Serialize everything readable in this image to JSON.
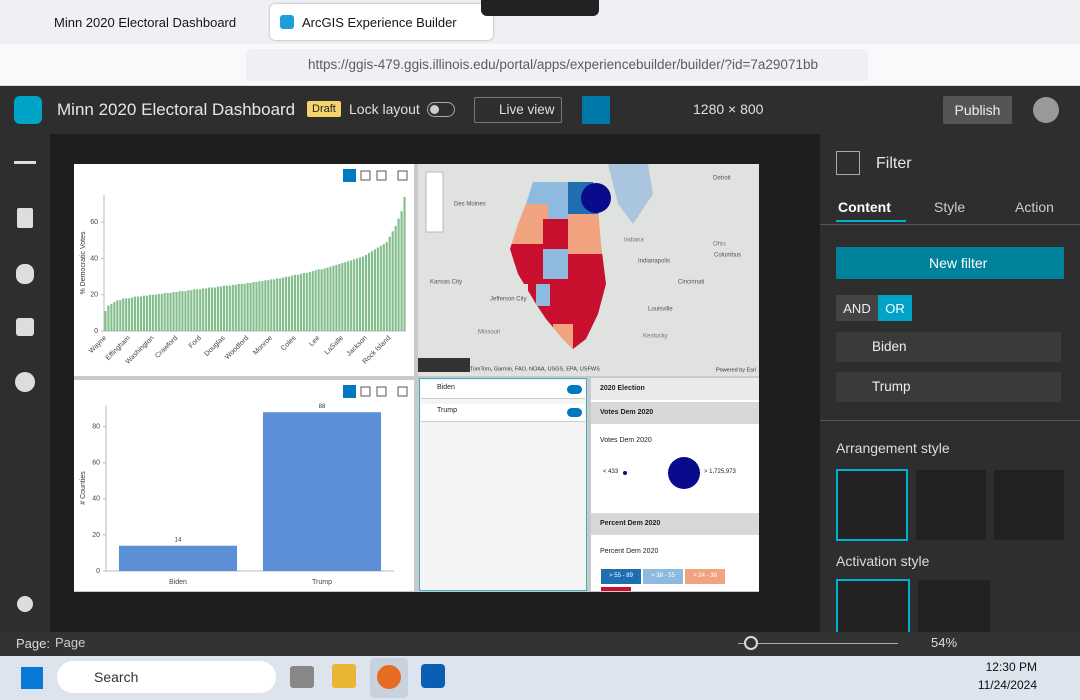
{
  "browser": {
    "tabs": [
      "Minn 2020 Electoral Dashboard",
      "ArcGIS Experience Builder"
    ],
    "url": "https://ggis-479.ggis.illinois.edu/portal/apps/experiencebuilder/builder/?id=7a29071bb"
  },
  "header": {
    "title": "Minn 2020 Electoral Dashboard",
    "status": "Draft",
    "lock_layout": "Lock layout",
    "live_view": "Live view",
    "resolution": "1280 × 800",
    "publish": "Publish"
  },
  "chart_data": [
    {
      "type": "bar",
      "ylabel": "% Democratic Votes",
      "color": "#82bd8c",
      "ylim": [
        0,
        75
      ],
      "yticks": [
        0,
        20,
        40,
        60
      ],
      "grid": false,
      "categories": [
        "Wayne",
        null,
        null,
        null,
        null,
        null,
        null,
        null,
        "Effingham",
        null,
        null,
        null,
        null,
        null,
        null,
        null,
        "Washington",
        null,
        null,
        null,
        null,
        null,
        null,
        null,
        "Crawford",
        null,
        null,
        null,
        null,
        null,
        null,
        null,
        "Ford",
        null,
        null,
        null,
        null,
        null,
        null,
        null,
        "Douglas",
        null,
        null,
        null,
        null,
        null,
        null,
        null,
        "Woodford",
        null,
        null,
        null,
        null,
        null,
        null,
        null,
        "Monroe",
        null,
        null,
        null,
        null,
        null,
        null,
        null,
        "Coles",
        null,
        null,
        null,
        null,
        null,
        null,
        null,
        "Lee",
        null,
        null,
        null,
        null,
        null,
        null,
        null,
        "LaSalle",
        null,
        null,
        null,
        null,
        null,
        null,
        null,
        "Jackson",
        null,
        null,
        null,
        null,
        null,
        null,
        null,
        "Rock Island",
        null,
        null,
        null,
        null,
        null
      ],
      "values": [
        11,
        14,
        15,
        16,
        17,
        17,
        18,
        18,
        18,
        18.5,
        19,
        19,
        19,
        19.5,
        19.5,
        20,
        20,
        20,
        20.5,
        20.5,
        21,
        21,
        21,
        21.5,
        21.5,
        22,
        22,
        22,
        22.5,
        22.5,
        23,
        23,
        23,
        23.5,
        23.5,
        24,
        24,
        24,
        24.5,
        24.5,
        25,
        25,
        25,
        25.5,
        25.5,
        26,
        26,
        26,
        26.5,
        26.5,
        27,
        27,
        27.5,
        27.5,
        28,
        28,
        28.5,
        28.5,
        29,
        29,
        29.5,
        30,
        30,
        30.5,
        31,
        31,
        31.5,
        32,
        32,
        32.5,
        33,
        33.5,
        34,
        34,
        34.5,
        35,
        35.5,
        36,
        36.5,
        37,
        37.5,
        38,
        38.5,
        39,
        39.5,
        40,
        40.5,
        41,
        42,
        43,
        44,
        45,
        46,
        47,
        48,
        49,
        52,
        55,
        58,
        62,
        66,
        74
      ]
    },
    {
      "type": "bar",
      "ylabel": "# Counties",
      "color": "#5b8fd6",
      "ylim": [
        0,
        92
      ],
      "yticks": [
        0,
        20,
        40,
        60,
        80
      ],
      "grid": false,
      "show_values": true,
      "categories": [
        "Biden",
        "Trump"
      ],
      "values": [
        14,
        88
      ]
    }
  ],
  "map": {
    "labels": [
      "Des Moines",
      "Kansas City",
      "Jefferson City",
      "Missouri",
      "Indiana",
      "Indianapolis",
      "Ohio",
      "Columbus",
      "Cincinnati",
      "Louisville",
      "Kentucky",
      "Detroit"
    ],
    "attribution": "TomTom, Garmin, FAO, NOAA, USGS, EPA, USFWS",
    "powered_by": "Powered by Esri"
  },
  "filter_widget": {
    "items": [
      "Biden",
      "Trump"
    ]
  },
  "legend": {
    "title": "2020 Election",
    "sections": [
      {
        "header": "Votes Dem 2020",
        "title": "Votes Dem 2020",
        "min_label": "< 433",
        "max_label": "> 1,725,973"
      },
      {
        "header": "Percent Dem 2020",
        "title": "Percent Dem 2020",
        "classes": [
          "> 55 - 89",
          "> 38 - 55",
          "> 24 - 38"
        ]
      }
    ]
  },
  "panel": {
    "title": "Filter",
    "tabs": [
      "Content",
      "Style",
      "Action"
    ],
    "new_filter": "New filter",
    "logic": [
      "AND",
      "OR"
    ],
    "filters": [
      "Biden",
      "Trump"
    ],
    "arrangement_style": "Arrangement style",
    "activation_style": "Activation style"
  },
  "status_bar": {
    "page_label": "Page:",
    "page": "Page",
    "zoom": "54%"
  },
  "taskbar": {
    "search": "Search",
    "time": "12:30 PM",
    "date": "11/24/2024"
  }
}
